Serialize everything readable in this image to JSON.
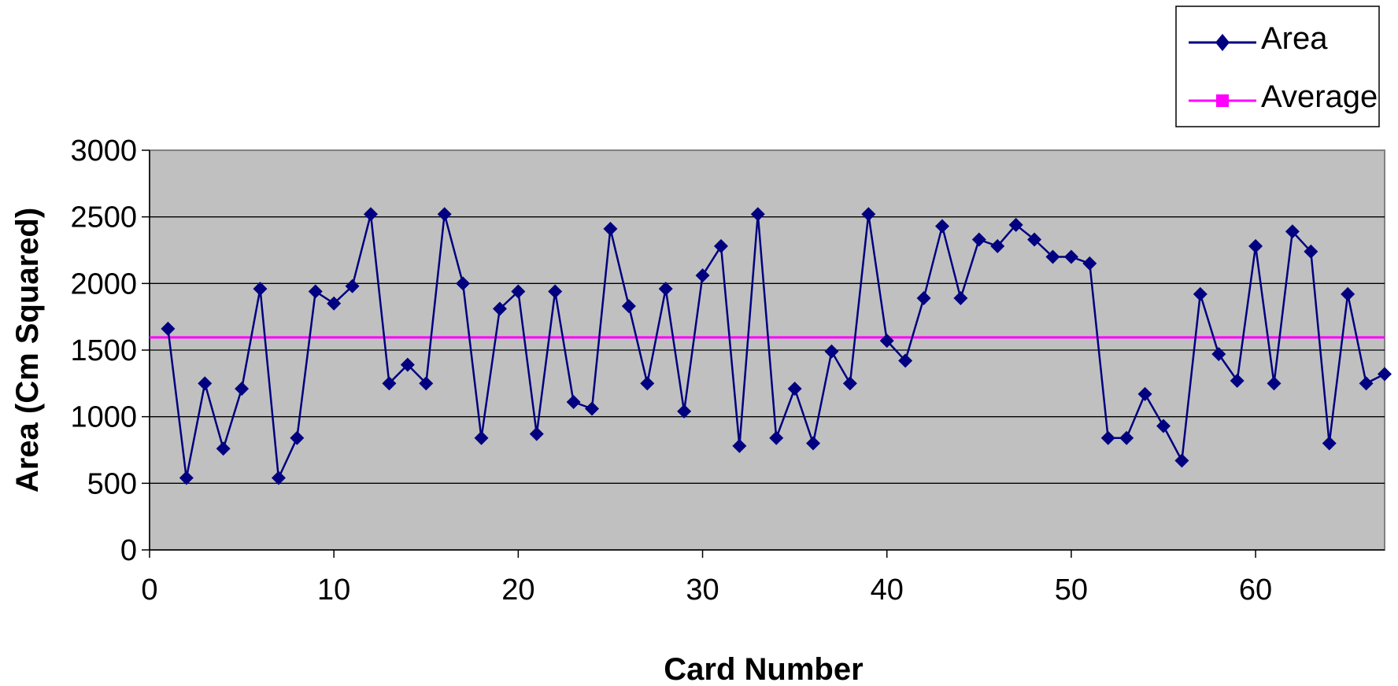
{
  "chart_data": {
    "type": "line",
    "title": "",
    "xlabel": "Card Number",
    "ylabel": "Area (Cm  Squared)",
    "xlim": [
      0,
      67
    ],
    "ylim": [
      0,
      3000
    ],
    "x_ticks": [
      0,
      10,
      20,
      30,
      40,
      50,
      60
    ],
    "y_ticks": [
      0,
      500,
      1000,
      1500,
      2000,
      2500,
      3000
    ],
    "grid": "horizontal",
    "plot_background": "#c0c0c0",
    "legend_position": "top-right",
    "series": [
      {
        "name": "Area",
        "color": "#000080",
        "marker": "diamond",
        "x": [
          1,
          2,
          3,
          4,
          5,
          6,
          7,
          8,
          9,
          10,
          11,
          12,
          13,
          14,
          15,
          16,
          17,
          18,
          19,
          20,
          21,
          22,
          23,
          24,
          25,
          26,
          27,
          28,
          29,
          30,
          31,
          32,
          33,
          34,
          35,
          36,
          37,
          38,
          39,
          40,
          41,
          42,
          43,
          44,
          45,
          46,
          47,
          48,
          49,
          50,
          51,
          52,
          53,
          54,
          55,
          56,
          57,
          58,
          59,
          60,
          61,
          62,
          63,
          64,
          65,
          66,
          67
        ],
        "values": [
          1660,
          540,
          1250,
          760,
          1210,
          1960,
          540,
          840,
          1940,
          1850,
          1980,
          2520,
          1250,
          1390,
          1250,
          2520,
          2000,
          840,
          1810,
          1940,
          870,
          1940,
          1110,
          1060,
          2410,
          1830,
          1250,
          1960,
          1040,
          2060,
          2280,
          780,
          2520,
          840,
          1210,
          800,
          1490,
          1250,
          2520,
          1570,
          1420,
          1890,
          2430,
          1890,
          2330,
          2280,
          2440,
          2330,
          2200,
          2200,
          2150,
          840,
          840,
          1170,
          930,
          670,
          1920,
          1470,
          1270,
          2280,
          1250,
          2390,
          2240,
          800,
          1920,
          1250,
          1320
        ]
      },
      {
        "name": "Average",
        "color": "#ff00ff",
        "marker": "square",
        "value": 1595
      }
    ]
  }
}
